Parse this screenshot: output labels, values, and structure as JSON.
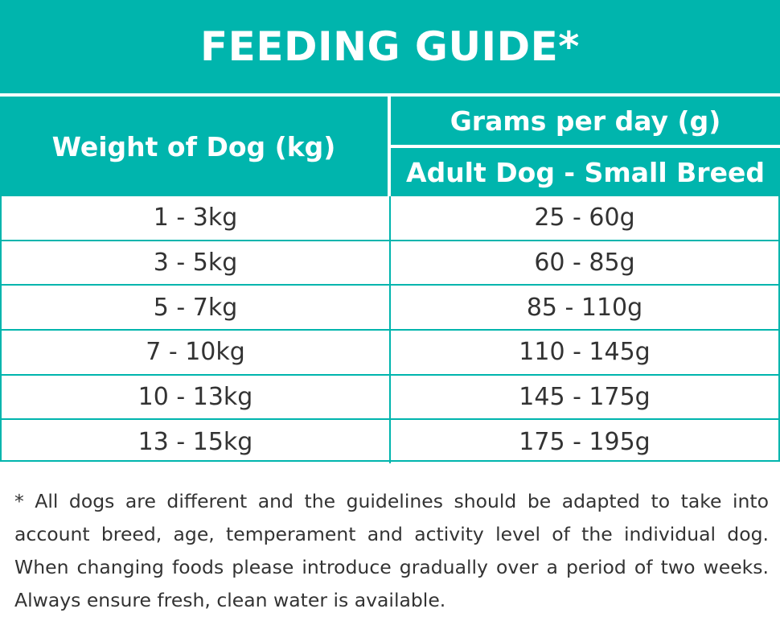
{
  "title": "FEEDING GUIDE*",
  "header": {
    "weight": "Weight of Dog (kg)",
    "grams": "Grams per day (g)",
    "breed": "Adult Dog - Small Breed"
  },
  "rows": [
    {
      "weight": "1 - 3kg",
      "grams": "25 - 60g"
    },
    {
      "weight": "3 - 5kg",
      "grams": "60 - 85g"
    },
    {
      "weight": "5 - 7kg",
      "grams": "85 - 110g"
    },
    {
      "weight": "7 - 10kg",
      "grams": "110 - 145g"
    },
    {
      "weight": "10 - 13kg",
      "grams": "145 - 175g"
    },
    {
      "weight": "13 - 15kg",
      "grams": "175 - 195g"
    }
  ],
  "footnote": "* All dogs are different and the guidelines should be adapted to take into account breed, age, temperament and activity level of the individual dog. When changing foods please introduce gradually over a period of two weeks. Always ensure fresh, clean water is available.",
  "colors": {
    "accent": "#00b5ad",
    "text": "#333333"
  }
}
